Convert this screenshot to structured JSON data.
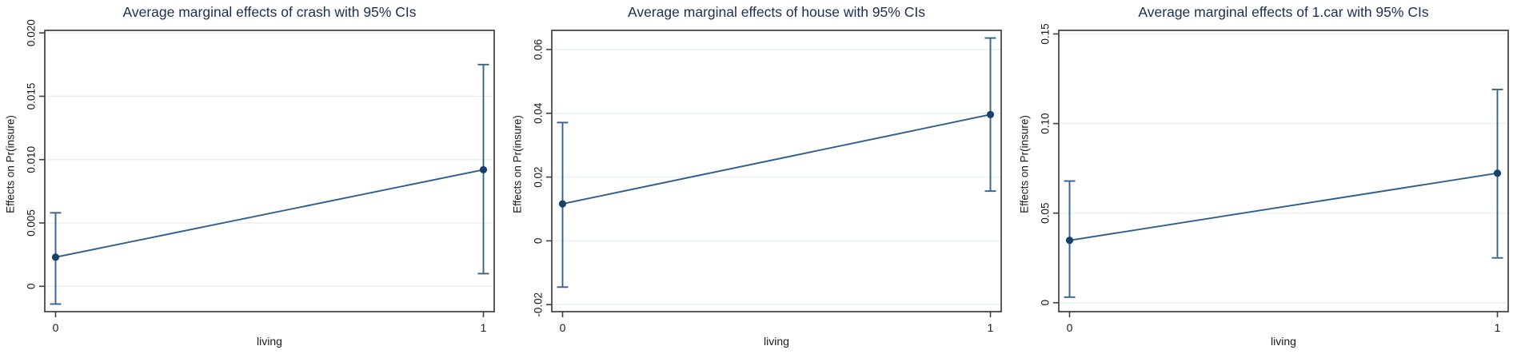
{
  "page": {
    "background": "#ffffff",
    "description": "Three Stata marginal-effects plots shown side by side"
  },
  "colors": {
    "title": "#1e2d53",
    "line": "#2e5d8c",
    "ci": "#35648f",
    "marker": "#17416d",
    "axis": "#3f3f3f",
    "grid": "#e9f1f2",
    "tick_label": "#1a1a1a"
  },
  "chart_data": [
    {
      "type": "line",
      "title": "Average marginal effects of crash with 95% CIs",
      "xlabel": "living",
      "ylabel": "Effects on Pr(insure)",
      "x": [
        0,
        1
      ],
      "x_tick_labels": [
        "0",
        "1"
      ],
      "series": [
        {
          "name": "Average marginal effect of crash",
          "values": [
            0.0023,
            0.0092
          ]
        }
      ],
      "ci_low": [
        -0.0014,
        0.001
      ],
      "ci_high": [
        0.0058,
        0.0175
      ],
      "yticks": [
        {
          "value": 0,
          "label": "0"
        },
        {
          "value": 0.005,
          "label": "0.005"
        },
        {
          "value": 0.01,
          "label": "0.010"
        },
        {
          "value": 0.015,
          "label": "0.015"
        },
        {
          "value": 0.02,
          "label": "0.020"
        }
      ],
      "ylim": [
        -0.002,
        0.0202
      ],
      "grid": true,
      "legend": "none"
    },
    {
      "type": "line",
      "title": "Average marginal effects of house with 95% CIs",
      "xlabel": "living",
      "ylabel": "Effects on Pr(insure)",
      "x": [
        0,
        1
      ],
      "x_tick_labels": [
        "0",
        "1"
      ],
      "series": [
        {
          "name": "Average marginal effect of house",
          "values": [
            0.0116,
            0.0396
          ]
        }
      ],
      "ci_low": [
        -0.0145,
        0.0156
      ],
      "ci_high": [
        0.0371,
        0.0636
      ],
      "yticks": [
        {
          "value": -0.02,
          "label": "-0.02"
        },
        {
          "value": 0,
          "label": "0"
        },
        {
          "value": 0.02,
          "label": "0.02"
        },
        {
          "value": 0.04,
          "label": "0.04"
        },
        {
          "value": 0.06,
          "label": "0.06"
        }
      ],
      "ylim": [
        -0.0222,
        0.066
      ],
      "grid": true,
      "legend": "none"
    },
    {
      "type": "line",
      "title": "Average marginal effects of 1.car with 95% CIs",
      "xlabel": "living",
      "ylabel": "Effects on Pr(insure)",
      "x": [
        0,
        1
      ],
      "x_tick_labels": [
        "0",
        "1"
      ],
      "series": [
        {
          "name": "Average marginal effect of 1.car",
          "values": [
            0.0348,
            0.0723
          ]
        }
      ],
      "ci_low": [
        0.0031,
        0.025
      ],
      "ci_high": [
        0.0679,
        0.119
      ],
      "yticks": [
        {
          "value": 0,
          "label": "0"
        },
        {
          "value": 0.05,
          "label": "0.05"
        },
        {
          "value": 0.1,
          "label": "0.10"
        },
        {
          "value": 0.15,
          "label": "0.15"
        }
      ],
      "ylim": [
        -0.005,
        0.152
      ],
      "grid": true,
      "legend": "none"
    }
  ]
}
